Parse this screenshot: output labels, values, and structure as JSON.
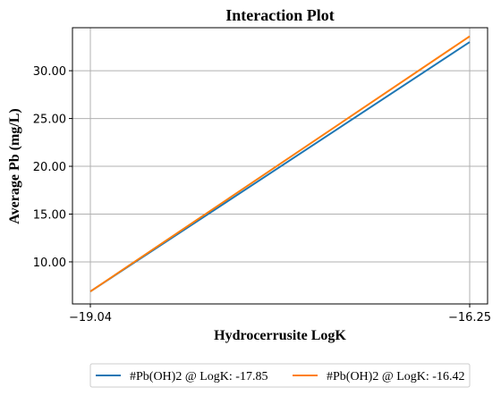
{
  "chart_data": {
    "type": "line",
    "title": "Interaction Plot",
    "xlabel": "Hydrocerrusite LogK",
    "ylabel": "Average Pb (mg/L)",
    "x": [
      -19.04,
      -16.25
    ],
    "x_tick_labels": [
      "−19.04",
      "−16.25"
    ],
    "xlim": [
      -19.04,
      -16.25
    ],
    "ylim": [
      5.6,
      34.5
    ],
    "y_ticks": [
      10.0,
      15.0,
      20.0,
      25.0,
      30.0
    ],
    "y_tick_labels": [
      "10.00",
      "15.00",
      "20.00",
      "25.00",
      "30.00"
    ],
    "grid": true,
    "legend_position": "bottom-center",
    "series": [
      {
        "name": "#Pb(OH)2 @ LogK: -17.85",
        "values": [
          6.9,
          33.0
        ],
        "color": "#1f77b4"
      },
      {
        "name": "#Pb(OH)2 @ LogK: -16.42",
        "values": [
          6.9,
          33.6
        ],
        "color": "#ff7f0e"
      }
    ]
  }
}
